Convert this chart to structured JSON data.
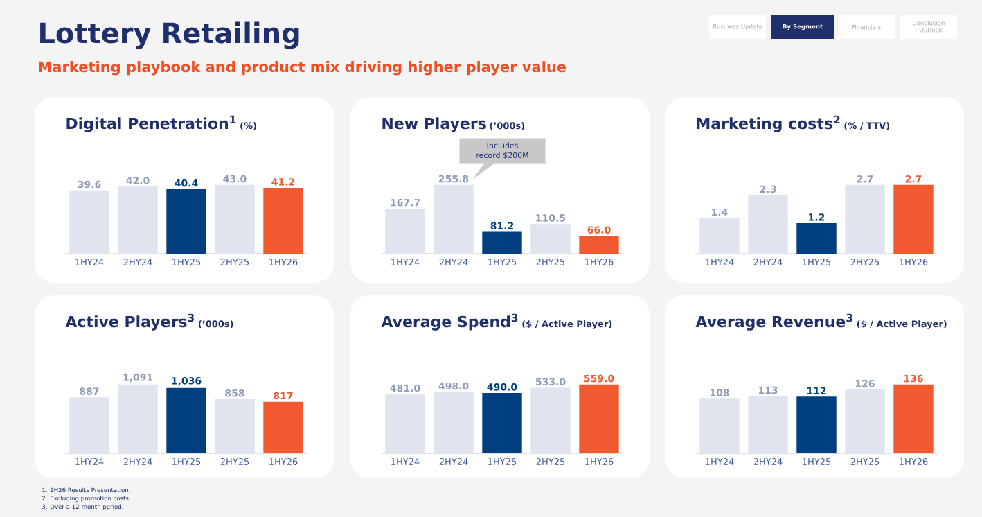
{
  "chart_data": [
    {
      "type": "bar",
      "title": "Digital Penetration$^{1}$",
      "subtitle": "(%)",
      "categories": [
        "1HY24",
        "2HY24",
        "1HY25",
        "2HY25",
        "1HY26"
      ],
      "values": [
        39.6,
        42.0,
        40.4,
        43.0,
        41.2
      ],
      "colors": [
        "#dfe4ee",
        "#dfe4ee",
        "#003f7f",
        "#dfe4ee",
        "#f15a30"
      ],
      "value_labels": [
        "39.6",
        "42.0",
        "40.4",
        "43.0",
        "41.2"
      ],
      "annotations": [
        "Lottery Retailing",
        "Marketing playbook and product mix driving higher player value",
        "Business Update",
        "By Segment",
        "Financials",
        "Conclusion | Outlook",
        "1. 1H26 Results Presentation.",
        "2. Excluding promotion costs.",
        "3. Over a 12-month period."
      ]
    },
    {
      "type": "bar",
      "title": "New Players",
      "subtitle": "(’000s)",
      "categories": [
        "1HY24",
        "2HY24",
        "1HY25",
        "2HY25",
        "1HY26"
      ],
      "values": [
        167.7,
        255.8,
        81.2,
        110.5,
        66.0
      ],
      "colors": [
        "#dfe4ee",
        "#dfe4ee",
        "#003f7f",
        "#dfe4ee",
        "#f15a30"
      ],
      "value_labels": [
        "167.7",
        "255.8",
        "81.2",
        "110.5",
        "66.0"
      ],
      "annotations": [
        "Includes record $200M"
      ]
    },
    {
      "type": "bar",
      "title": "Marketing costs$^{2}$",
      "subtitle": "(% / TTV)",
      "categories": [
        "1HY24",
        "2HY24",
        "1HY25",
        "2HY25",
        "1HY26"
      ],
      "values": [
        1.4,
        2.3,
        1.2,
        2.7,
        2.7
      ],
      "colors": [
        "#dfe4ee",
        "#dfe4ee",
        "#003f7f",
        "#dfe4ee",
        "#f15a30"
      ],
      "value_labels": [
        "1.4",
        "2.3",
        "1.2",
        "2.7",
        "2.7"
      ]
    },
    {
      "type": "bar",
      "title": "Active Players$^{3}$",
      "subtitle": "(’000s)",
      "categories": [
        "1HY24",
        "2HY24",
        "1HY25",
        "2HY25",
        "1HY26"
      ],
      "values": [
        887,
        1091,
        1036,
        858,
        817
      ],
      "colors": [
        "#dfe4ee",
        "#dfe4ee",
        "#003f7f",
        "#dfe4ee",
        "#f15a30"
      ],
      "value_labels": [
        "887",
        "1,091",
        "1,036",
        "858",
        "817"
      ]
    },
    {
      "type": "bar",
      "title": "Average Spend$^{3}$",
      "subtitle": "($ / Active Player)",
      "categories": [
        "1HY24",
        "2HY24",
        "1HY25",
        "2HY25",
        "1HY26"
      ],
      "values": [
        481.0,
        498.0,
        490.0,
        533.0,
        559.0
      ],
      "colors": [
        "#dfe4ee",
        "#dfe4ee",
        "#003f7f",
        "#dfe4ee",
        "#f15a30"
      ],
      "value_labels": [
        "481.0",
        "498.0",
        "490.0",
        "533.0",
        "559.0"
      ]
    },
    {
      "type": "bar",
      "title": "Average Revenue$^{3}$",
      "subtitle": "($ / Active Player)",
      "categories": [
        "1HY24",
        "2HY24",
        "1HY25",
        "2HY25",
        "1HY26"
      ],
      "values": [
        108,
        113,
        112,
        126,
        136
      ],
      "colors": [
        "#dfe4ee",
        "#dfe4ee",
        "#003f7f",
        "#dfe4ee",
        "#f15a30"
      ],
      "value_labels": [
        "108",
        "113",
        "112",
        "126",
        "136"
      ]
    }
  ]
}
